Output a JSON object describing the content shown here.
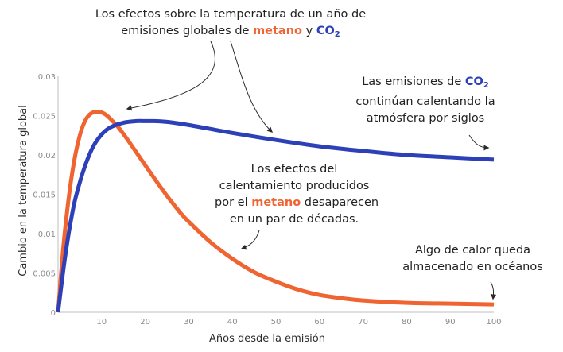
{
  "chart_data": {
    "type": "line",
    "xlabel": "Años desde la emisión",
    "ylabel": "Cambio en la temperatura global",
    "xlim": [
      0,
      100
    ],
    "ylim": [
      0,
      0.03
    ],
    "x_ticks": [
      "10",
      "20",
      "30",
      "40",
      "50",
      "60",
      "70",
      "80",
      "90",
      "100"
    ],
    "y_ticks": [
      "0",
      "0.005",
      "0.01",
      "0.015",
      "0.02",
      "0.025",
      "0.03"
    ],
    "grid": false,
    "series": [
      {
        "color": "#ef6431",
        "x": [
          0,
          1,
          2,
          3,
          4,
          5,
          6,
          7,
          8,
          9,
          10,
          11,
          12,
          14,
          16,
          18,
          20,
          22,
          25,
          28,
          30,
          35,
          40,
          45,
          50,
          55,
          60,
          65,
          70,
          80,
          90,
          100
        ],
        "y": [
          0,
          0.007,
          0.0125,
          0.0168,
          0.0201,
          0.0225,
          0.0241,
          0.025,
          0.0254,
          0.0255,
          0.0254,
          0.0251,
          0.0246,
          0.0234,
          0.0219,
          0.0203,
          0.0187,
          0.0171,
          0.0148,
          0.0127,
          0.0115,
          0.0089,
          0.0068,
          0.0051,
          0.0039,
          0.0029,
          0.0022,
          0.0018,
          0.0015,
          0.0012,
          0.0011,
          0.001
        ]
      },
      {
        "color": "#2d40b8",
        "x": [
          0,
          1,
          2,
          3,
          4,
          6,
          8,
          10,
          12,
          15,
          18,
          20,
          22,
          25,
          30,
          35,
          40,
          50,
          60,
          70,
          80,
          90,
          100
        ],
        "y": [
          0,
          0.0045,
          0.0085,
          0.0118,
          0.0145,
          0.0183,
          0.021,
          0.0226,
          0.0235,
          0.0241,
          0.0243,
          0.0243,
          0.0243,
          0.0242,
          0.0238,
          0.0233,
          0.0228,
          0.0219,
          0.0211,
          0.0205,
          0.02,
          0.0197,
          0.0194
        ]
      }
    ]
  },
  "annotations": {
    "top": {
      "line1": "Los efectos sobre la temperatura de un año de",
      "line2_a": "emisiones globales de ",
      "line2_methane": "metano",
      "line2_b": " y ",
      "line2_co2": "CO",
      "line2_sub": "2"
    },
    "co2": {
      "line1_a": "Las emisiones de ",
      "line1_co2": "CO",
      "line1_sub": "2",
      "line2": "continúan calentando la",
      "line3": "atmósfera por siglos"
    },
    "methane": {
      "line1": "Los efectos del",
      "line2": "calentamiento producidos",
      "line3_a": "por el ",
      "line3_methane": "metano",
      "line3_b": " desaparecen",
      "line4": "en un par de décadas."
    },
    "ocean": {
      "line1": "Algo de calor queda",
      "line2": "almacenado en océanos"
    }
  }
}
